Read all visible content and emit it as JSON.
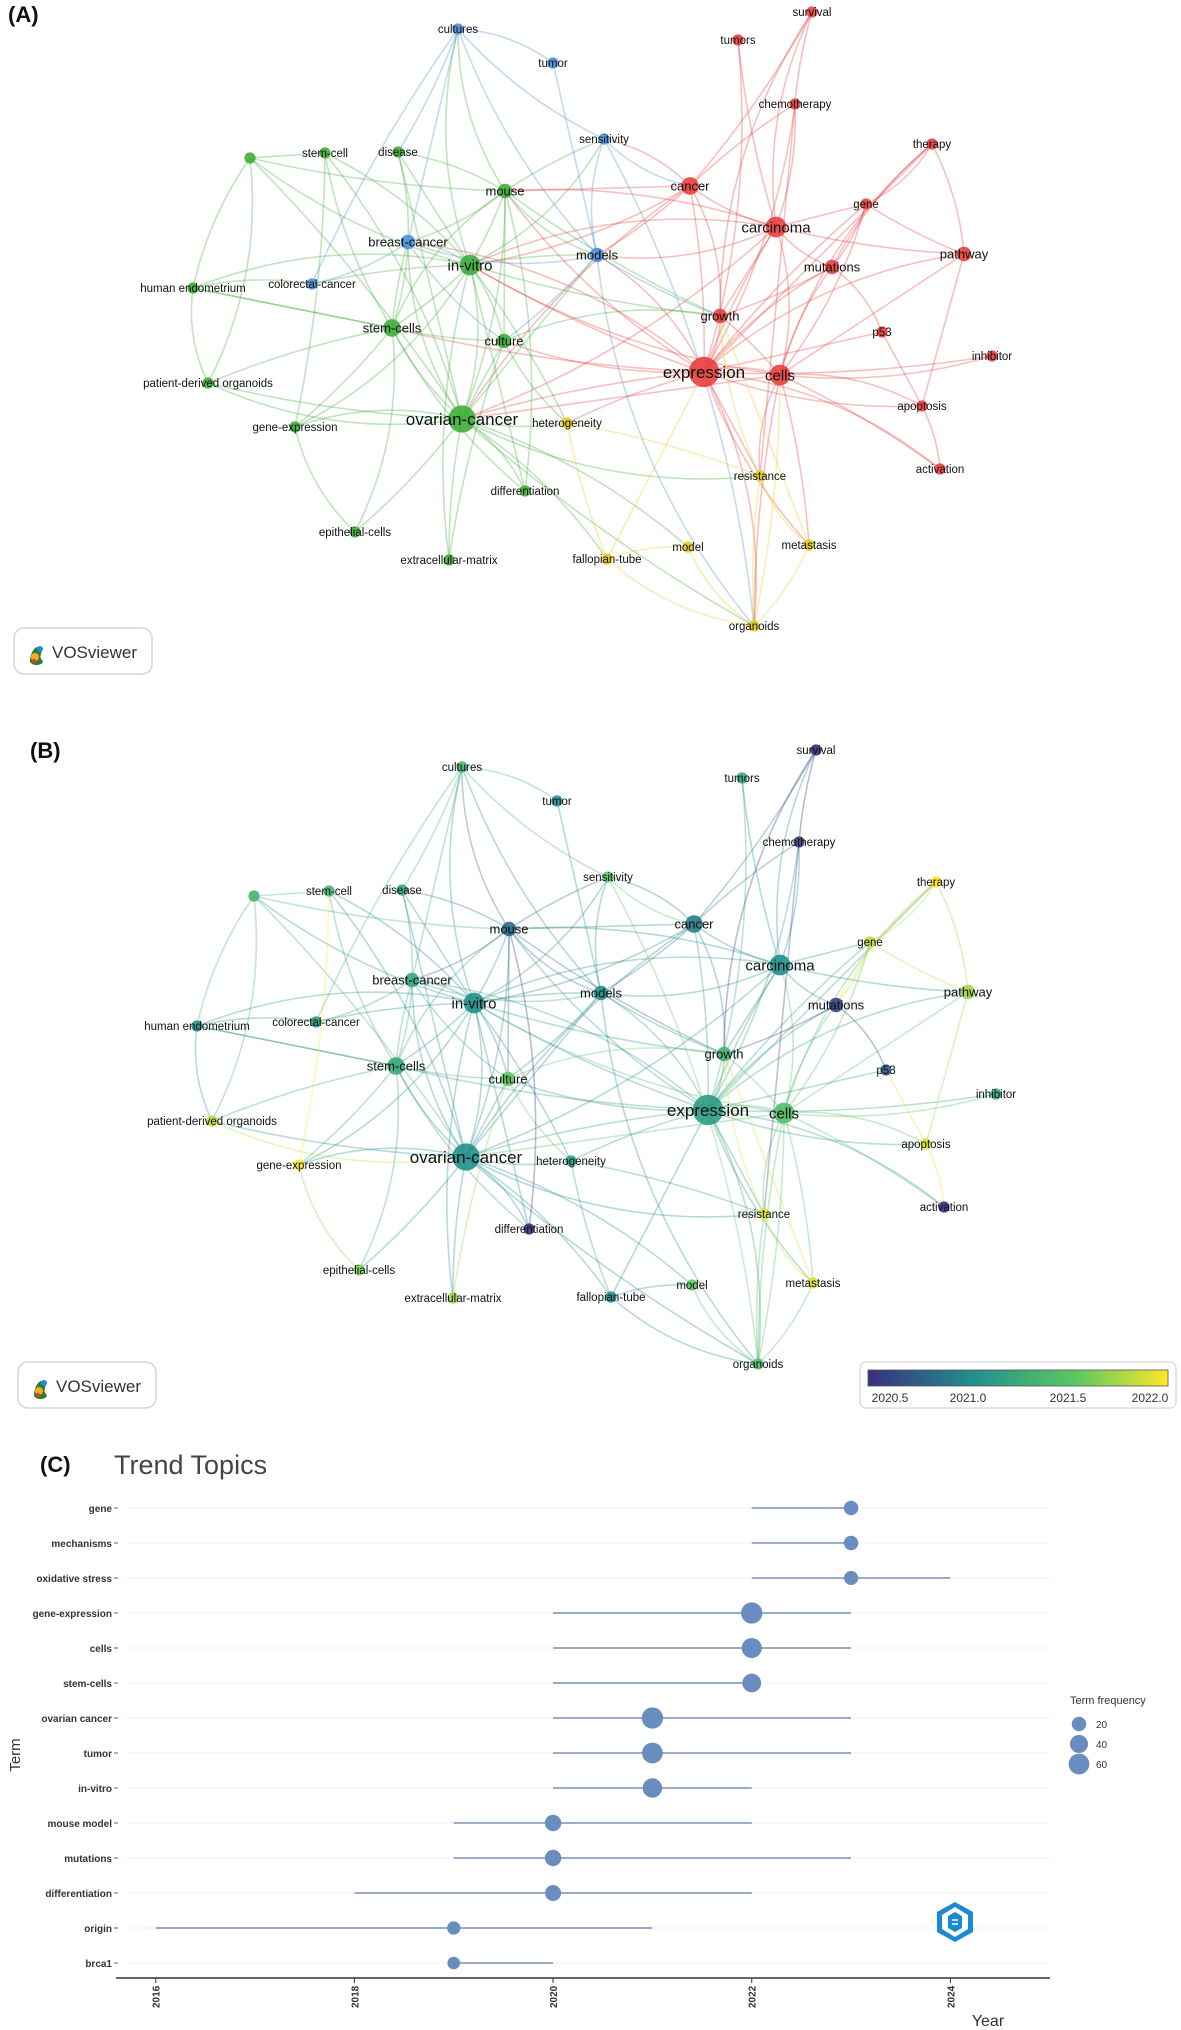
{
  "panels": {
    "a": "(A)",
    "b": "(B)",
    "c": "(C)"
  },
  "vosviewer": {
    "brand": "VOSviewer",
    "legend_ticks": [
      "2020.5",
      "2021.0",
      "2021.5",
      "2022.0"
    ],
    "legend_colors": [
      "#3b2f7e",
      "#21908c",
      "#5ec962",
      "#fde725"
    ]
  },
  "cluster_colors": {
    "red": "#e8403f",
    "green": "#3fae3a",
    "blue": "#4a90d9",
    "yellow": "#e5cc1a"
  },
  "network": {
    "nodes": [
      {
        "id": "survival",
        "cluster": "red",
        "weight": 1,
        "year": 2020.5
      },
      {
        "id": "tumors",
        "cluster": "red",
        "weight": 1,
        "year": 2021.2
      },
      {
        "id": "chemotherapy",
        "cluster": "red",
        "weight": 1,
        "year": 2020.6
      },
      {
        "id": "therapy",
        "cluster": "red",
        "weight": 1,
        "year": 2022.0
      },
      {
        "id": "cancer",
        "cluster": "red",
        "weight": 3,
        "year": 2020.9
      },
      {
        "id": "gene",
        "cluster": "red",
        "weight": 1,
        "year": 2021.8
      },
      {
        "id": "carcinoma",
        "cluster": "red",
        "weight": 4,
        "year": 2021.0
      },
      {
        "id": "pathway",
        "cluster": "red",
        "weight": 2,
        "year": 2021.7
      },
      {
        "id": "mutations",
        "cluster": "red",
        "weight": 2,
        "year": 2020.6
      },
      {
        "id": "growth",
        "cluster": "red",
        "weight": 2,
        "year": 2021.3
      },
      {
        "id": "p53",
        "cluster": "red",
        "weight": 1,
        "year": 2020.7
      },
      {
        "id": "inhibitor",
        "cluster": "red",
        "weight": 1,
        "year": 2021.2
      },
      {
        "id": "expression",
        "cluster": "red",
        "weight": 7,
        "year": 2021.1
      },
      {
        "id": "cells",
        "cluster": "red",
        "weight": 4,
        "year": 2021.4
      },
      {
        "id": "apoptosis",
        "cluster": "red",
        "weight": 1,
        "year": 2021.9
      },
      {
        "id": "activation",
        "cluster": "red",
        "weight": 1,
        "year": 2020.5
      },
      {
        "id": "cultures",
        "cluster": "blue",
        "weight": 1,
        "year": 2021.3
      },
      {
        "id": "tumor",
        "cluster": "blue",
        "weight": 1,
        "year": 2021.0
      },
      {
        "id": "sensitivity",
        "cluster": "blue",
        "weight": 1,
        "year": 2021.5
      },
      {
        "id": "breast-cancer",
        "cluster": "blue",
        "weight": 2,
        "year": 2021.2
      },
      {
        "id": "models",
        "cluster": "blue",
        "weight": 2,
        "year": 2021.0
      },
      {
        "id": "colorectal-cancer",
        "cluster": "blue",
        "weight": 1,
        "year": 2021.1
      },
      {
        "id": "",
        "cluster": "green",
        "weight": 1,
        "year": 2021.3
      },
      {
        "id": "stem-cell",
        "cluster": "green",
        "weight": 1,
        "year": 2021.3
      },
      {
        "id": "disease",
        "cluster": "green",
        "weight": 1,
        "year": 2021.2
      },
      {
        "id": "mouse",
        "cluster": "green",
        "weight": 2,
        "year": 2020.8
      },
      {
        "id": "in-vitro",
        "cluster": "green",
        "weight": 4,
        "year": 2021.0
      },
      {
        "id": "human endometrium",
        "cluster": "green",
        "weight": 1,
        "year": 2021.0
      },
      {
        "id": "stem-cells",
        "cluster": "green",
        "weight": 3,
        "year": 2021.2
      },
      {
        "id": "culture",
        "cluster": "green",
        "weight": 2,
        "year": 2021.5
      },
      {
        "id": "patient-derived organoids",
        "cluster": "green",
        "weight": 1,
        "year": 2021.8
      },
      {
        "id": "gene-expression",
        "cluster": "green",
        "weight": 1,
        "year": 2022.0
      },
      {
        "id": "ovarian-cancer",
        "cluster": "green",
        "weight": 6,
        "year": 2021.0
      },
      {
        "id": "differentiation",
        "cluster": "green",
        "weight": 1,
        "year": 2020.5
      },
      {
        "id": "epithelial-cells",
        "cluster": "green",
        "weight": 1,
        "year": 2021.6
      },
      {
        "id": "extracellular-matrix",
        "cluster": "green",
        "weight": 1,
        "year": 2021.7
      },
      {
        "id": "heterogeneity",
        "cluster": "yellow",
        "weight": 1,
        "year": 2021.1
      },
      {
        "id": "resistance",
        "cluster": "yellow",
        "weight": 1,
        "year": 2021.9
      },
      {
        "id": "fallopian-tube",
        "cluster": "yellow",
        "weight": 1,
        "year": 2021.0
      },
      {
        "id": "model",
        "cluster": "yellow",
        "weight": 1,
        "year": 2021.5
      },
      {
        "id": "metastasis",
        "cluster": "yellow",
        "weight": 1,
        "year": 2021.9
      },
      {
        "id": "organoids",
        "cluster": "yellow",
        "weight": 1,
        "year": 2021.4
      }
    ]
  },
  "chart_data": {
    "type": "scatter",
    "title": "Trend Topics",
    "xlabel": "Year",
    "ylabel": "Term",
    "xlim": [
      2016,
      2024
    ],
    "x_ticks": [
      2016,
      2018,
      2020,
      2022,
      2024
    ],
    "legend": {
      "title": "Term frequency",
      "placement": "right",
      "sizes": [
        20,
        40,
        60
      ]
    },
    "point_color": "#6a8dbf",
    "line_color": "#9aaac8",
    "terms": [
      {
        "term": "gene",
        "year_q1": 2022,
        "year_median": 2023,
        "year_q3": 2023,
        "freq": 20
      },
      {
        "term": "mechanisms",
        "year_q1": 2022,
        "year_median": 2023,
        "year_q3": 2023,
        "freq": 20
      },
      {
        "term": "oxidative stress",
        "year_q1": 2022,
        "year_median": 2023,
        "year_q3": 2024,
        "freq": 18
      },
      {
        "term": "gene-expression",
        "year_q1": 2020,
        "year_median": 2022,
        "year_q3": 2023,
        "freq": 65
      },
      {
        "term": "cells",
        "year_q1": 2020,
        "year_median": 2022,
        "year_q3": 2023,
        "freq": 55
      },
      {
        "term": "stem-cells",
        "year_q1": 2020,
        "year_median": 2022,
        "year_q3": 2022,
        "freq": 45
      },
      {
        "term": "ovarian cancer",
        "year_q1": 2020,
        "year_median": 2021,
        "year_q3": 2023,
        "freq": 65
      },
      {
        "term": "tumor",
        "year_q1": 2020,
        "year_median": 2021,
        "year_q3": 2023,
        "freq": 60
      },
      {
        "term": "in-vitro",
        "year_q1": 2020,
        "year_median": 2021,
        "year_q3": 2022,
        "freq": 50
      },
      {
        "term": "mouse model",
        "year_q1": 2019,
        "year_median": 2020,
        "year_q3": 2022,
        "freq": 30
      },
      {
        "term": "mutations",
        "year_q1": 2019,
        "year_median": 2020,
        "year_q3": 2023,
        "freq": 30
      },
      {
        "term": "differentiation",
        "year_q1": 2018,
        "year_median": 2020,
        "year_q3": 2022,
        "freq": 28
      },
      {
        "term": "origin",
        "year_q1": 2016,
        "year_median": 2019,
        "year_q3": 2021,
        "freq": 15
      },
      {
        "term": "brca1",
        "year_q1": 2019,
        "year_median": 2019,
        "year_q3": 2020,
        "freq": 12
      }
    ]
  }
}
